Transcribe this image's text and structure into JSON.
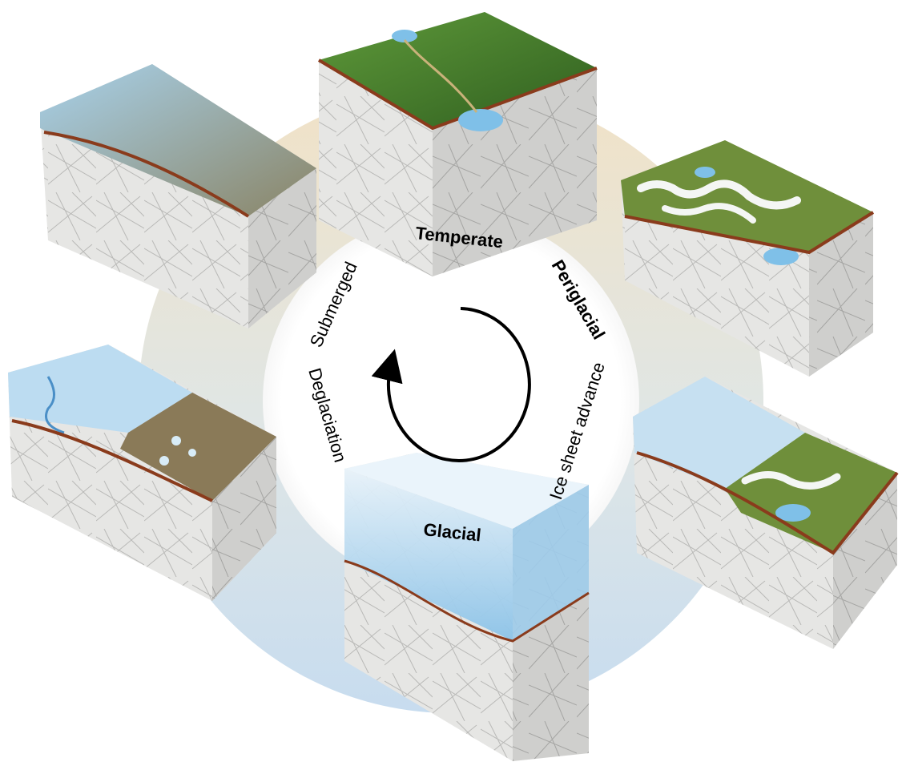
{
  "cycle": {
    "stages": [
      {
        "id": "temperate",
        "label": "Temperate",
        "bold": true
      },
      {
        "id": "periglacial",
        "label": "Periglacial",
        "bold": true
      },
      {
        "id": "ice-sheet-advance",
        "label": "Ice sheet advance",
        "bold": false
      },
      {
        "id": "glacial",
        "label": "Glacial",
        "bold": true
      },
      {
        "id": "deglaciation",
        "label": "Deglaciation",
        "bold": false
      },
      {
        "id": "submerged",
        "label": "Submerged",
        "bold": false
      }
    ],
    "direction": "clockwise"
  },
  "colors": {
    "ring_warm": "#f1e2c6",
    "ring_cool": "#c7dcef",
    "inner_disc": "#ffffff",
    "bedrock": "#e6e6e4",
    "bedrock_shadow": "#c9c9c7",
    "soil_line": "#8a3b1c",
    "vegetation": "#4f8b2f",
    "vegetation_dark": "#2f5e1f",
    "snow": "#f4f6f4",
    "water": "#7fc0e8",
    "ice": "#a9d3ef",
    "ice_dark": "#7cb8e2",
    "sediment": "#8a7a58",
    "arrow": "#000000"
  }
}
